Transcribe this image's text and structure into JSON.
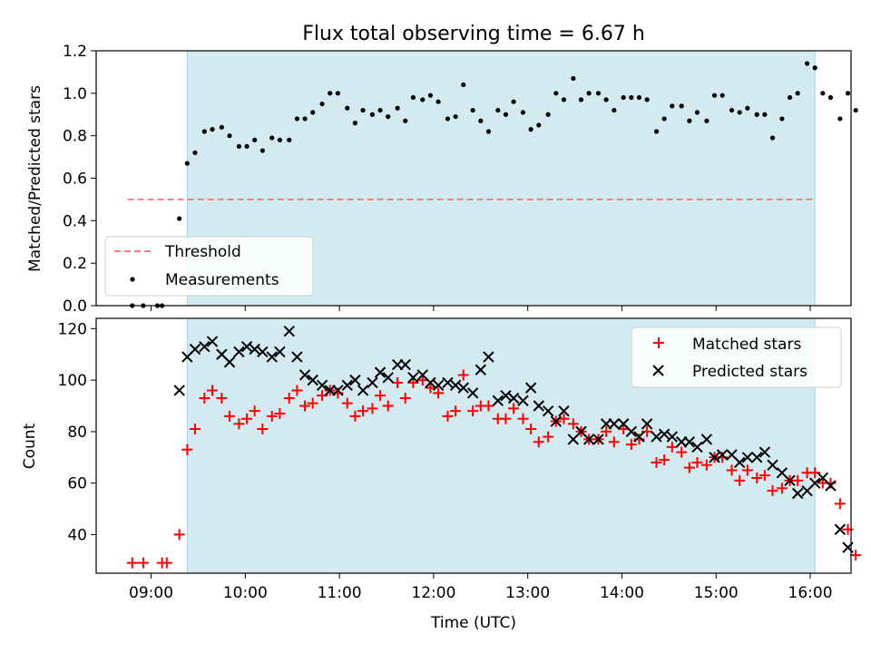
{
  "figure_title": "Flux total observing time = 6.67 h",
  "chart_data": [
    {
      "type": "scatter",
      "ylabel": "Matched/Predicted stars",
      "xlabel": "",
      "ylim": [
        0,
        1.2
      ],
      "yticks": [
        "0.0",
        "0.2",
        "0.4",
        "0.6",
        "0.8",
        "1.0",
        "1.2"
      ],
      "yticks_values": [
        0,
        0.2,
        0.4,
        0.6,
        0.8,
        1.0,
        1.2
      ],
      "shaded_interval": [
        "09:23",
        "16:03"
      ],
      "shade_color": "#d3eaf1",
      "legend_position": "lower-left",
      "threshold": {
        "name": "Threshold",
        "value": 0.5,
        "from": "08:45",
        "to": "16:03",
        "color": "#f08080"
      },
      "series": [
        {
          "name": "Measurements",
          "marker": "dot",
          "color": "#000000",
          "points": [
            [
              "08:48",
              0.0
            ],
            [
              "08:55",
              0.0
            ],
            [
              "09:04",
              0.0
            ],
            [
              "09:07",
              0.0
            ],
            [
              "09:18",
              0.41
            ],
            [
              "09:23",
              0.67
            ],
            [
              "09:28",
              0.72
            ],
            [
              "09:34",
              0.82
            ],
            [
              "09:39",
              0.83
            ],
            [
              "09:45",
              0.84
            ],
            [
              "09:50",
              0.8
            ],
            [
              "09:56",
              0.75
            ],
            [
              "10:01",
              0.75
            ],
            [
              "10:06",
              0.78
            ],
            [
              "10:11",
              0.73
            ],
            [
              "10:17",
              0.79
            ],
            [
              "10:22",
              0.78
            ],
            [
              "10:28",
              0.78
            ],
            [
              "10:33",
              0.88
            ],
            [
              "10:38",
              0.88
            ],
            [
              "10:43",
              0.91
            ],
            [
              "10:49",
              0.95
            ],
            [
              "10:54",
              1.0
            ],
            [
              "10:59",
              1.0
            ],
            [
              "11:05",
              0.93
            ],
            [
              "11:10",
              0.86
            ],
            [
              "11:15",
              0.92
            ],
            [
              "11:21",
              0.9
            ],
            [
              "11:26",
              0.92
            ],
            [
              "11:31",
              0.89
            ],
            [
              "11:37",
              0.93
            ],
            [
              "11:42",
              0.87
            ],
            [
              "11:47",
              0.98
            ],
            [
              "11:53",
              0.97
            ],
            [
              "11:58",
              0.99
            ],
            [
              "12:03",
              0.96
            ],
            [
              "12:09",
              0.88
            ],
            [
              "12:14",
              0.89
            ],
            [
              "12:19",
              1.04
            ],
            [
              "12:25",
              0.92
            ],
            [
              "12:30",
              0.87
            ],
            [
              "12:35",
              0.82
            ],
            [
              "12:41",
              0.92
            ],
            [
              "12:46",
              0.9
            ],
            [
              "12:51",
              0.96
            ],
            [
              "12:57",
              0.91
            ],
            [
              "13:02",
              0.83
            ],
            [
              "13:07",
              0.85
            ],
            [
              "13:13",
              0.9
            ],
            [
              "13:18",
              1.0
            ],
            [
              "13:23",
              0.97
            ],
            [
              "13:29",
              1.07
            ],
            [
              "13:34",
              0.97
            ],
            [
              "13:39",
              1.0
            ],
            [
              "13:45",
              1.0
            ],
            [
              "13:50",
              0.97
            ],
            [
              "13:55",
              0.92
            ],
            [
              "14:01",
              0.98
            ],
            [
              "14:06",
              0.98
            ],
            [
              "14:11",
              0.98
            ],
            [
              "14:16",
              0.97
            ],
            [
              "14:22",
              0.82
            ],
            [
              "14:27",
              0.88
            ],
            [
              "14:32",
              0.94
            ],
            [
              "14:38",
              0.94
            ],
            [
              "14:43",
              0.87
            ],
            [
              "14:48",
              0.91
            ],
            [
              "14:54",
              0.87
            ],
            [
              "14:59",
              0.99
            ],
            [
              "15:04",
              0.99
            ],
            [
              "15:10",
              0.92
            ],
            [
              "15:15",
              0.91
            ],
            [
              "15:20",
              0.93
            ],
            [
              "15:26",
              0.9
            ],
            [
              "15:31",
              0.9
            ],
            [
              "15:36",
              0.79
            ],
            [
              "15:42",
              0.88
            ],
            [
              "15:47",
              0.98
            ],
            [
              "15:52",
              1.0
            ],
            [
              "15:58",
              1.14
            ],
            [
              "16:03",
              1.12
            ],
            [
              "16:08",
              1.0
            ],
            [
              "16:13",
              0.98
            ],
            [
              "16:19",
              0.88
            ],
            [
              "16:24",
              1.0
            ],
            [
              "16:29",
              0.92
            ]
          ]
        }
      ]
    },
    {
      "type": "scatter",
      "ylabel": "Count",
      "xlabel": "Time (UTC)",
      "ylim": [
        25,
        124
      ],
      "xlim": [
        "08:25",
        "16:26"
      ],
      "xticks": [
        "09:00",
        "10:00",
        "11:00",
        "12:00",
        "13:00",
        "14:00",
        "15:00",
        "16:00"
      ],
      "yticks": [
        "40",
        "60",
        "80",
        "100",
        "120"
      ],
      "yticks_values": [
        40,
        60,
        80,
        100,
        120
      ],
      "shaded_interval": [
        "09:23",
        "16:03"
      ],
      "shade_color": "#d3eaf1",
      "legend_position": "top-right",
      "series": [
        {
          "name": "Matched stars",
          "marker": "plus",
          "color": "#ff0000",
          "points": [
            [
              "08:48",
              29
            ],
            [
              "08:55",
              29
            ],
            [
              "09:07",
              29
            ],
            [
              "09:10",
              29
            ],
            [
              "09:18",
              40
            ],
            [
              "09:23",
              73
            ],
            [
              "09:28",
              81
            ],
            [
              "09:34",
              93
            ],
            [
              "09:39",
              96
            ],
            [
              "09:45",
              93
            ],
            [
              "09:50",
              86
            ],
            [
              "09:56",
              83
            ],
            [
              "10:01",
              85
            ],
            [
              "10:06",
              88
            ],
            [
              "10:11",
              81
            ],
            [
              "10:17",
              86
            ],
            [
              "10:22",
              87
            ],
            [
              "10:28",
              93
            ],
            [
              "10:33",
              96
            ],
            [
              "10:38",
              90
            ],
            [
              "10:43",
              91
            ],
            [
              "10:49",
              94
            ],
            [
              "10:54",
              96
            ],
            [
              "10:59",
              95
            ],
            [
              "11:05",
              91
            ],
            [
              "11:10",
              86
            ],
            [
              "11:15",
              88
            ],
            [
              "11:21",
              89
            ],
            [
              "11:26",
              94
            ],
            [
              "11:31",
              90
            ],
            [
              "11:37",
              99
            ],
            [
              "11:42",
              93
            ],
            [
              "11:47",
              99
            ],
            [
              "11:53",
              100
            ],
            [
              "11:58",
              97
            ],
            [
              "12:03",
              95
            ],
            [
              "12:09",
              86
            ],
            [
              "12:14",
              88
            ],
            [
              "12:19",
              102
            ],
            [
              "12:25",
              88
            ],
            [
              "12:30",
              90
            ],
            [
              "12:35",
              90
            ],
            [
              "12:41",
              85
            ],
            [
              "12:46",
              85
            ],
            [
              "12:51",
              89
            ],
            [
              "12:57",
              85
            ],
            [
              "13:02",
              81
            ],
            [
              "13:07",
              76
            ],
            [
              "13:13",
              78
            ],
            [
              "13:18",
              84
            ],
            [
              "13:23",
              85
            ],
            [
              "13:29",
              83
            ],
            [
              "13:34",
              80
            ],
            [
              "13:39",
              77
            ],
            [
              "13:45",
              77
            ],
            [
              "13:50",
              80
            ],
            [
              "13:55",
              76
            ],
            [
              "14:01",
              81
            ],
            [
              "14:06",
              75
            ],
            [
              "14:11",
              77
            ],
            [
              "14:16",
              80
            ],
            [
              "14:22",
              68
            ],
            [
              "14:27",
              69
            ],
            [
              "14:32",
              74
            ],
            [
              "14:38",
              72
            ],
            [
              "14:43",
              66
            ],
            [
              "14:48",
              68
            ],
            [
              "14:54",
              67
            ],
            [
              "14:59",
              70
            ],
            [
              "15:04",
              70
            ],
            [
              "15:10",
              65
            ],
            [
              "15:15",
              61
            ],
            [
              "15:20",
              65
            ],
            [
              "15:26",
              62
            ],
            [
              "15:31",
              63
            ],
            [
              "15:36",
              57
            ],
            [
              "15:42",
              58
            ],
            [
              "15:47",
              61
            ],
            [
              "15:52",
              61
            ],
            [
              "15:58",
              64
            ],
            [
              "16:03",
              64
            ],
            [
              "16:08",
              60
            ],
            [
              "16:13",
              60
            ],
            [
              "16:19",
              52
            ],
            [
              "16:24",
              42
            ],
            [
              "16:29",
              32
            ]
          ]
        },
        {
          "name": "Predicted stars",
          "marker": "x",
          "color": "#000000",
          "points": [
            [
              "09:18",
              96
            ],
            [
              "09:23",
              109
            ],
            [
              "09:28",
              112
            ],
            [
              "09:34",
              113
            ],
            [
              "09:39",
              115
            ],
            [
              "09:45",
              110
            ],
            [
              "09:50",
              107
            ],
            [
              "09:56",
              111
            ],
            [
              "10:01",
              113
            ],
            [
              "10:06",
              112
            ],
            [
              "10:11",
              111
            ],
            [
              "10:17",
              109
            ],
            [
              "10:22",
              111
            ],
            [
              "10:28",
              119
            ],
            [
              "10:33",
              109
            ],
            [
              "10:38",
              102
            ],
            [
              "10:43",
              100
            ],
            [
              "10:49",
              98
            ],
            [
              "10:54",
              96
            ],
            [
              "10:59",
              96
            ],
            [
              "11:05",
              98
            ],
            [
              "11:10",
              100
            ],
            [
              "11:15",
              96
            ],
            [
              "11:21",
              99
            ],
            [
              "11:26",
              103
            ],
            [
              "11:31",
              101
            ],
            [
              "11:37",
              106
            ],
            [
              "11:42",
              106
            ],
            [
              "11:47",
              101
            ],
            [
              "11:53",
              102
            ],
            [
              "11:58",
              99
            ],
            [
              "12:03",
              98
            ],
            [
              "12:09",
              99
            ],
            [
              "12:14",
              98
            ],
            [
              "12:19",
              97
            ],
            [
              "12:25",
              95
            ],
            [
              "12:30",
              104
            ],
            [
              "12:35",
              109
            ],
            [
              "12:41",
              92
            ],
            [
              "12:46",
              94
            ],
            [
              "12:51",
              93
            ],
            [
              "12:57",
              92
            ],
            [
              "13:02",
              97
            ],
            [
              "13:07",
              90
            ],
            [
              "13:13",
              88
            ],
            [
              "13:18",
              84
            ],
            [
              "13:23",
              88
            ],
            [
              "13:29",
              77
            ],
            [
              "13:34",
              80
            ],
            [
              "13:39",
              77
            ],
            [
              "13:45",
              77
            ],
            [
              "13:50",
              83
            ],
            [
              "13:55",
              83
            ],
            [
              "14:01",
              83
            ],
            [
              "14:06",
              80
            ],
            [
              "14:11",
              78
            ],
            [
              "14:16",
              83
            ],
            [
              "14:22",
              78
            ],
            [
              "14:27",
              79
            ],
            [
              "14:32",
              78
            ],
            [
              "14:38",
              76
            ],
            [
              "14:43",
              76
            ],
            [
              "14:48",
              74
            ],
            [
              "14:54",
              77
            ],
            [
              "14:59",
              70
            ],
            [
              "15:04",
              71
            ],
            [
              "15:10",
              71
            ],
            [
              "15:15",
              68
            ],
            [
              "15:20",
              70
            ],
            [
              "15:26",
              70
            ],
            [
              "15:31",
              72
            ],
            [
              "15:36",
              67
            ],
            [
              "15:42",
              64
            ],
            [
              "15:47",
              61
            ],
            [
              "15:52",
              56
            ],
            [
              "15:58",
              57
            ],
            [
              "16:03",
              60
            ],
            [
              "16:08",
              62
            ],
            [
              "16:13",
              59
            ],
            [
              "16:19",
              42
            ],
            [
              "16:24",
              35
            ]
          ]
        }
      ]
    }
  ]
}
